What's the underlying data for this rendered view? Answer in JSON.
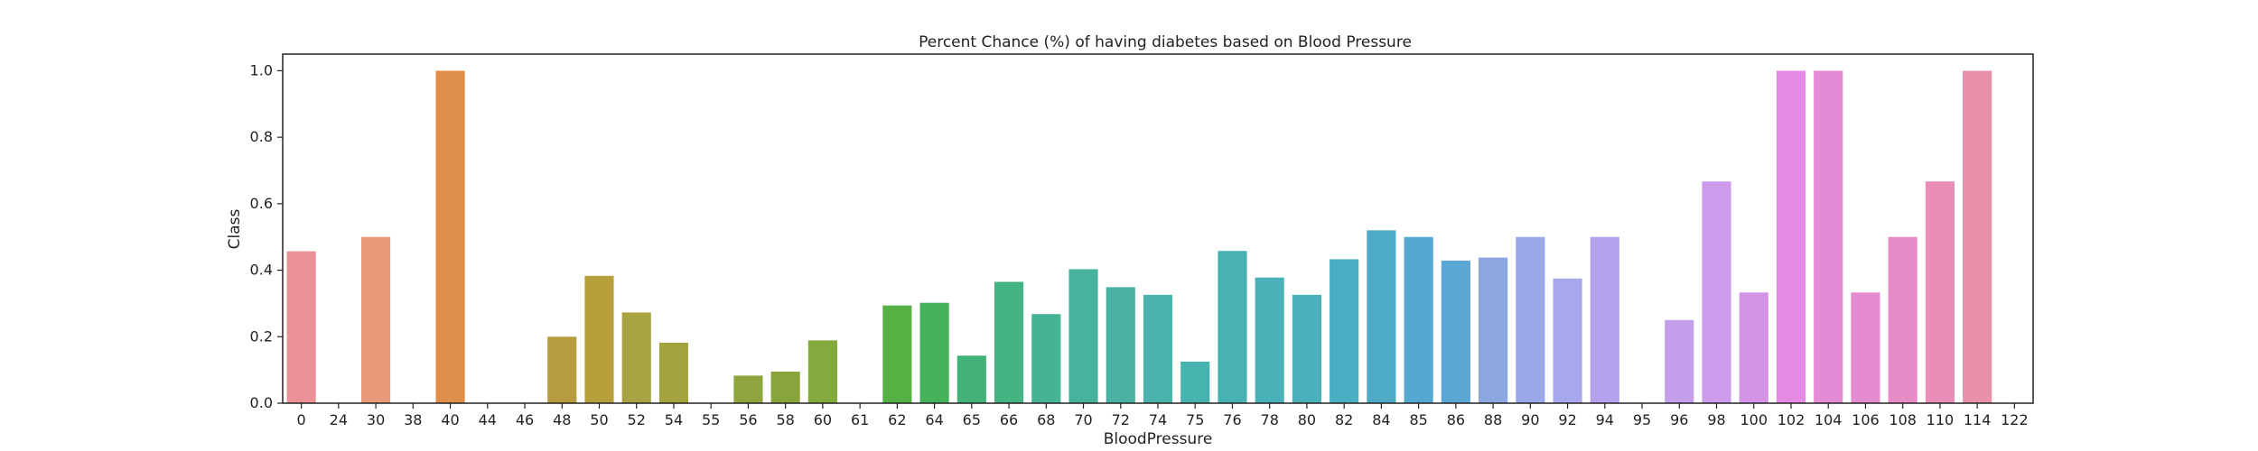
{
  "chart_data": {
    "type": "bar",
    "title": "Percent Chance (%) of having diabetes based on Blood Pressure",
    "xlabel": "BloodPressure",
    "ylabel": "Class",
    "ylim": [
      0,
      1.05
    ],
    "yticks": [
      "0.0",
      "0.2",
      "0.4",
      "0.6",
      "0.8",
      "1.0"
    ],
    "grid": false,
    "categories": [
      "0",
      "24",
      "30",
      "38",
      "40",
      "44",
      "46",
      "48",
      "50",
      "52",
      "54",
      "55",
      "56",
      "58",
      "60",
      "61",
      "62",
      "64",
      "65",
      "66",
      "68",
      "70",
      "72",
      "74",
      "75",
      "76",
      "78",
      "80",
      "82",
      "84",
      "85",
      "86",
      "88",
      "90",
      "92",
      "94",
      "95",
      "96",
      "98",
      "100",
      "102",
      "104",
      "106",
      "108",
      "110",
      "114",
      "122"
    ],
    "values": [
      0.457,
      0,
      0.5,
      0,
      1.0,
      0,
      0,
      0.2,
      0.383,
      0.273,
      0.182,
      0,
      0.083,
      0.095,
      0.189,
      0,
      0.294,
      0.302,
      0.143,
      0.365,
      0.268,
      0.403,
      0.349,
      0.326,
      0.125,
      0.458,
      0.378,
      0.326,
      0.433,
      0.52,
      0.5,
      0.429,
      0.438,
      0.5,
      0.375,
      0.5,
      0,
      0.25,
      0.667,
      0.333,
      1.0,
      1.0,
      0.333,
      0.5,
      0.667,
      1.0,
      0
    ],
    "colors": [
      "#ea9096",
      "#ea958b",
      "#e9997a",
      "#e6a05c",
      "#df8e4c",
      "#d39b43",
      "#c9a445",
      "#b79c3f",
      "#b7a03c",
      "#a9a344",
      "#a4a43e",
      "#9aa63e",
      "#8ea43c",
      "#89a43b",
      "#84a93c",
      "#79ad3e",
      "#55b143",
      "#45b15c",
      "#43b276",
      "#44b484",
      "#46b494",
      "#47b39c",
      "#49b2a4",
      "#4ab3ab",
      "#47b3ae",
      "#48b1b1",
      "#48b2b8",
      "#49b0bc",
      "#4aafc2",
      "#4eabc7",
      "#55a9d0",
      "#5aa7d6",
      "#8ca6e0",
      "#9ba8e8",
      "#a8a7eb",
      "#b2a3ec",
      "#b9a1ec",
      "#c49eeb",
      "#cc9beb",
      "#d593e8",
      "#e489e4",
      "#e48bd8",
      "#e58bd1",
      "#e88cc7",
      "#ea8db9",
      "#ea91aa",
      "#ea92a0"
    ]
  }
}
